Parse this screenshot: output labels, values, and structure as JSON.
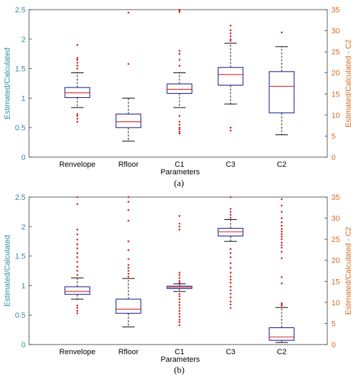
{
  "colors": {
    "box": "#1f1f8f",
    "median": "#d62020",
    "outlier": "#d62020",
    "whisker": "#000000",
    "left_axis": "#2e8b9a",
    "right_axis": "#d26a1e",
    "frame": "#333333"
  },
  "chart_data": [
    {
      "type": "box",
      "caption": "(a)",
      "xlabel": "Parameters",
      "ylabel": "Estimated/Calculated",
      "ylabel_right": "Estimated/Calculated - C2",
      "ylim": [
        0,
        2.5
      ],
      "ylim_right": [
        0,
        35
      ],
      "yticks": [
        "0",
        "0.5",
        "1",
        "1.5",
        "2",
        "2.5"
      ],
      "yticks_right": [
        "0",
        "5",
        "10",
        "15",
        "20",
        "25",
        "30",
        "35"
      ],
      "categories": [
        "Renvelope",
        "Rfloor",
        "C1",
        "C3",
        "C2"
      ],
      "boxes": [
        {
          "name": "Renvelope",
          "axis": "left",
          "min": 0.84,
          "q1": 1.01,
          "median": 1.09,
          "q3": 1.18,
          "max": 1.43,
          "outliers": [
            0.6,
            0.65,
            0.7,
            0.73,
            1.5,
            1.55,
            1.6,
            1.65,
            1.68,
            1.9
          ]
        },
        {
          "name": "Rfloor",
          "axis": "left",
          "min": 0.27,
          "q1": 0.5,
          "median": 0.6,
          "q3": 0.73,
          "max": 1.0,
          "outliers": [
            1.58,
            2.45
          ]
        },
        {
          "name": "C1",
          "axis": "left",
          "min": 0.84,
          "q1": 1.08,
          "median": 1.15,
          "q3": 1.24,
          "max": 1.43,
          "outliers": [
            0.4,
            0.43,
            0.47,
            0.5,
            0.55,
            0.6,
            0.7,
            1.55,
            1.65,
            1.75,
            1.8,
            2.46,
            2.48,
            2.5
          ]
        },
        {
          "name": "C3",
          "axis": "left",
          "min": 0.9,
          "q1": 1.22,
          "median": 1.4,
          "q3": 1.52,
          "max": 1.93,
          "outliers": [
            0.45,
            0.5,
            1.97,
            2.0,
            2.05,
            2.1,
            2.15,
            2.23
          ]
        },
        {
          "name": "C2",
          "axis": "right",
          "min": 5.3,
          "q1": 10.5,
          "median": 16.8,
          "q3": 20.3,
          "max": 26.2,
          "outliers": [
            29.6
          ]
        }
      ]
    },
    {
      "type": "box",
      "caption": "(b)",
      "xlabel": "Parameters",
      "ylabel": "Estimated/Calculated",
      "ylabel_right": "Estimated/Calculated - C2",
      "ylim": [
        0,
        2.5
      ],
      "ylim_right": [
        0,
        35
      ],
      "yticks": [
        "0",
        "0.5",
        "1",
        "1.5",
        "2",
        "2.5"
      ],
      "yticks_right": [
        "0",
        "5",
        "10",
        "15",
        "20",
        "25",
        "30",
        "35"
      ],
      "categories": [
        "Renvelope",
        "Rfloor",
        "C1",
        "C3",
        "C2"
      ],
      "boxes": [
        {
          "name": "Renvelope",
          "axis": "left",
          "min": 0.77,
          "q1": 0.85,
          "median": 0.9,
          "q3": 0.98,
          "max": 1.13,
          "outliers": [
            0.53,
            0.57,
            0.62,
            0.66,
            1.18,
            1.25,
            1.32,
            1.4,
            1.48,
            1.55,
            1.63,
            1.7,
            1.78,
            1.87,
            1.95,
            2.38,
            2.5
          ]
        },
        {
          "name": "Rfloor",
          "axis": "left",
          "min": 0.3,
          "q1": 0.53,
          "median": 0.6,
          "q3": 0.77,
          "max": 1.12,
          "outliers": [
            1.15,
            1.2,
            1.25,
            1.3,
            1.35,
            1.45,
            1.6,
            1.75,
            2.1,
            2.28,
            2.42,
            2.5
          ]
        },
        {
          "name": "C1",
          "axis": "left",
          "min": 0.9,
          "q1": 0.95,
          "median": 0.97,
          "q3": 0.99,
          "max": 1.03,
          "outliers": [
            0.33,
            0.38,
            0.42,
            0.47,
            0.52,
            0.57,
            0.62,
            0.67,
            0.72,
            0.77,
            0.82,
            0.86,
            1.05,
            1.08,
            1.13,
            1.18,
            1.22,
            1.95,
            2.0,
            2.05,
            2.18
          ]
        },
        {
          "name": "C3",
          "axis": "left",
          "min": 1.75,
          "q1": 1.84,
          "median": 1.91,
          "q3": 1.97,
          "max": 2.12,
          "outliers": [
            0.62,
            0.68,
            0.73,
            0.8,
            0.86,
            0.92,
            0.98,
            1.05,
            1.1,
            1.15,
            1.22,
            1.3,
            1.38,
            1.48,
            1.55,
            1.62,
            2.15,
            2.2,
            2.25,
            2.3,
            2.5
          ]
        },
        {
          "name": "C2",
          "axis": "right",
          "min": 0.5,
          "q1": 1.0,
          "median": 1.8,
          "q3": 4.0,
          "max": 8.8,
          "outliers": [
            9.2,
            9.5,
            9.8,
            14.5,
            16.0,
            20.5,
            22.0,
            23.0,
            23.6,
            24.2,
            25.0,
            25.6,
            26.2,
            26.8,
            27.4,
            28.2,
            29.0,
            30.0,
            31.5,
            33.0,
            34.5
          ]
        }
      ]
    }
  ]
}
